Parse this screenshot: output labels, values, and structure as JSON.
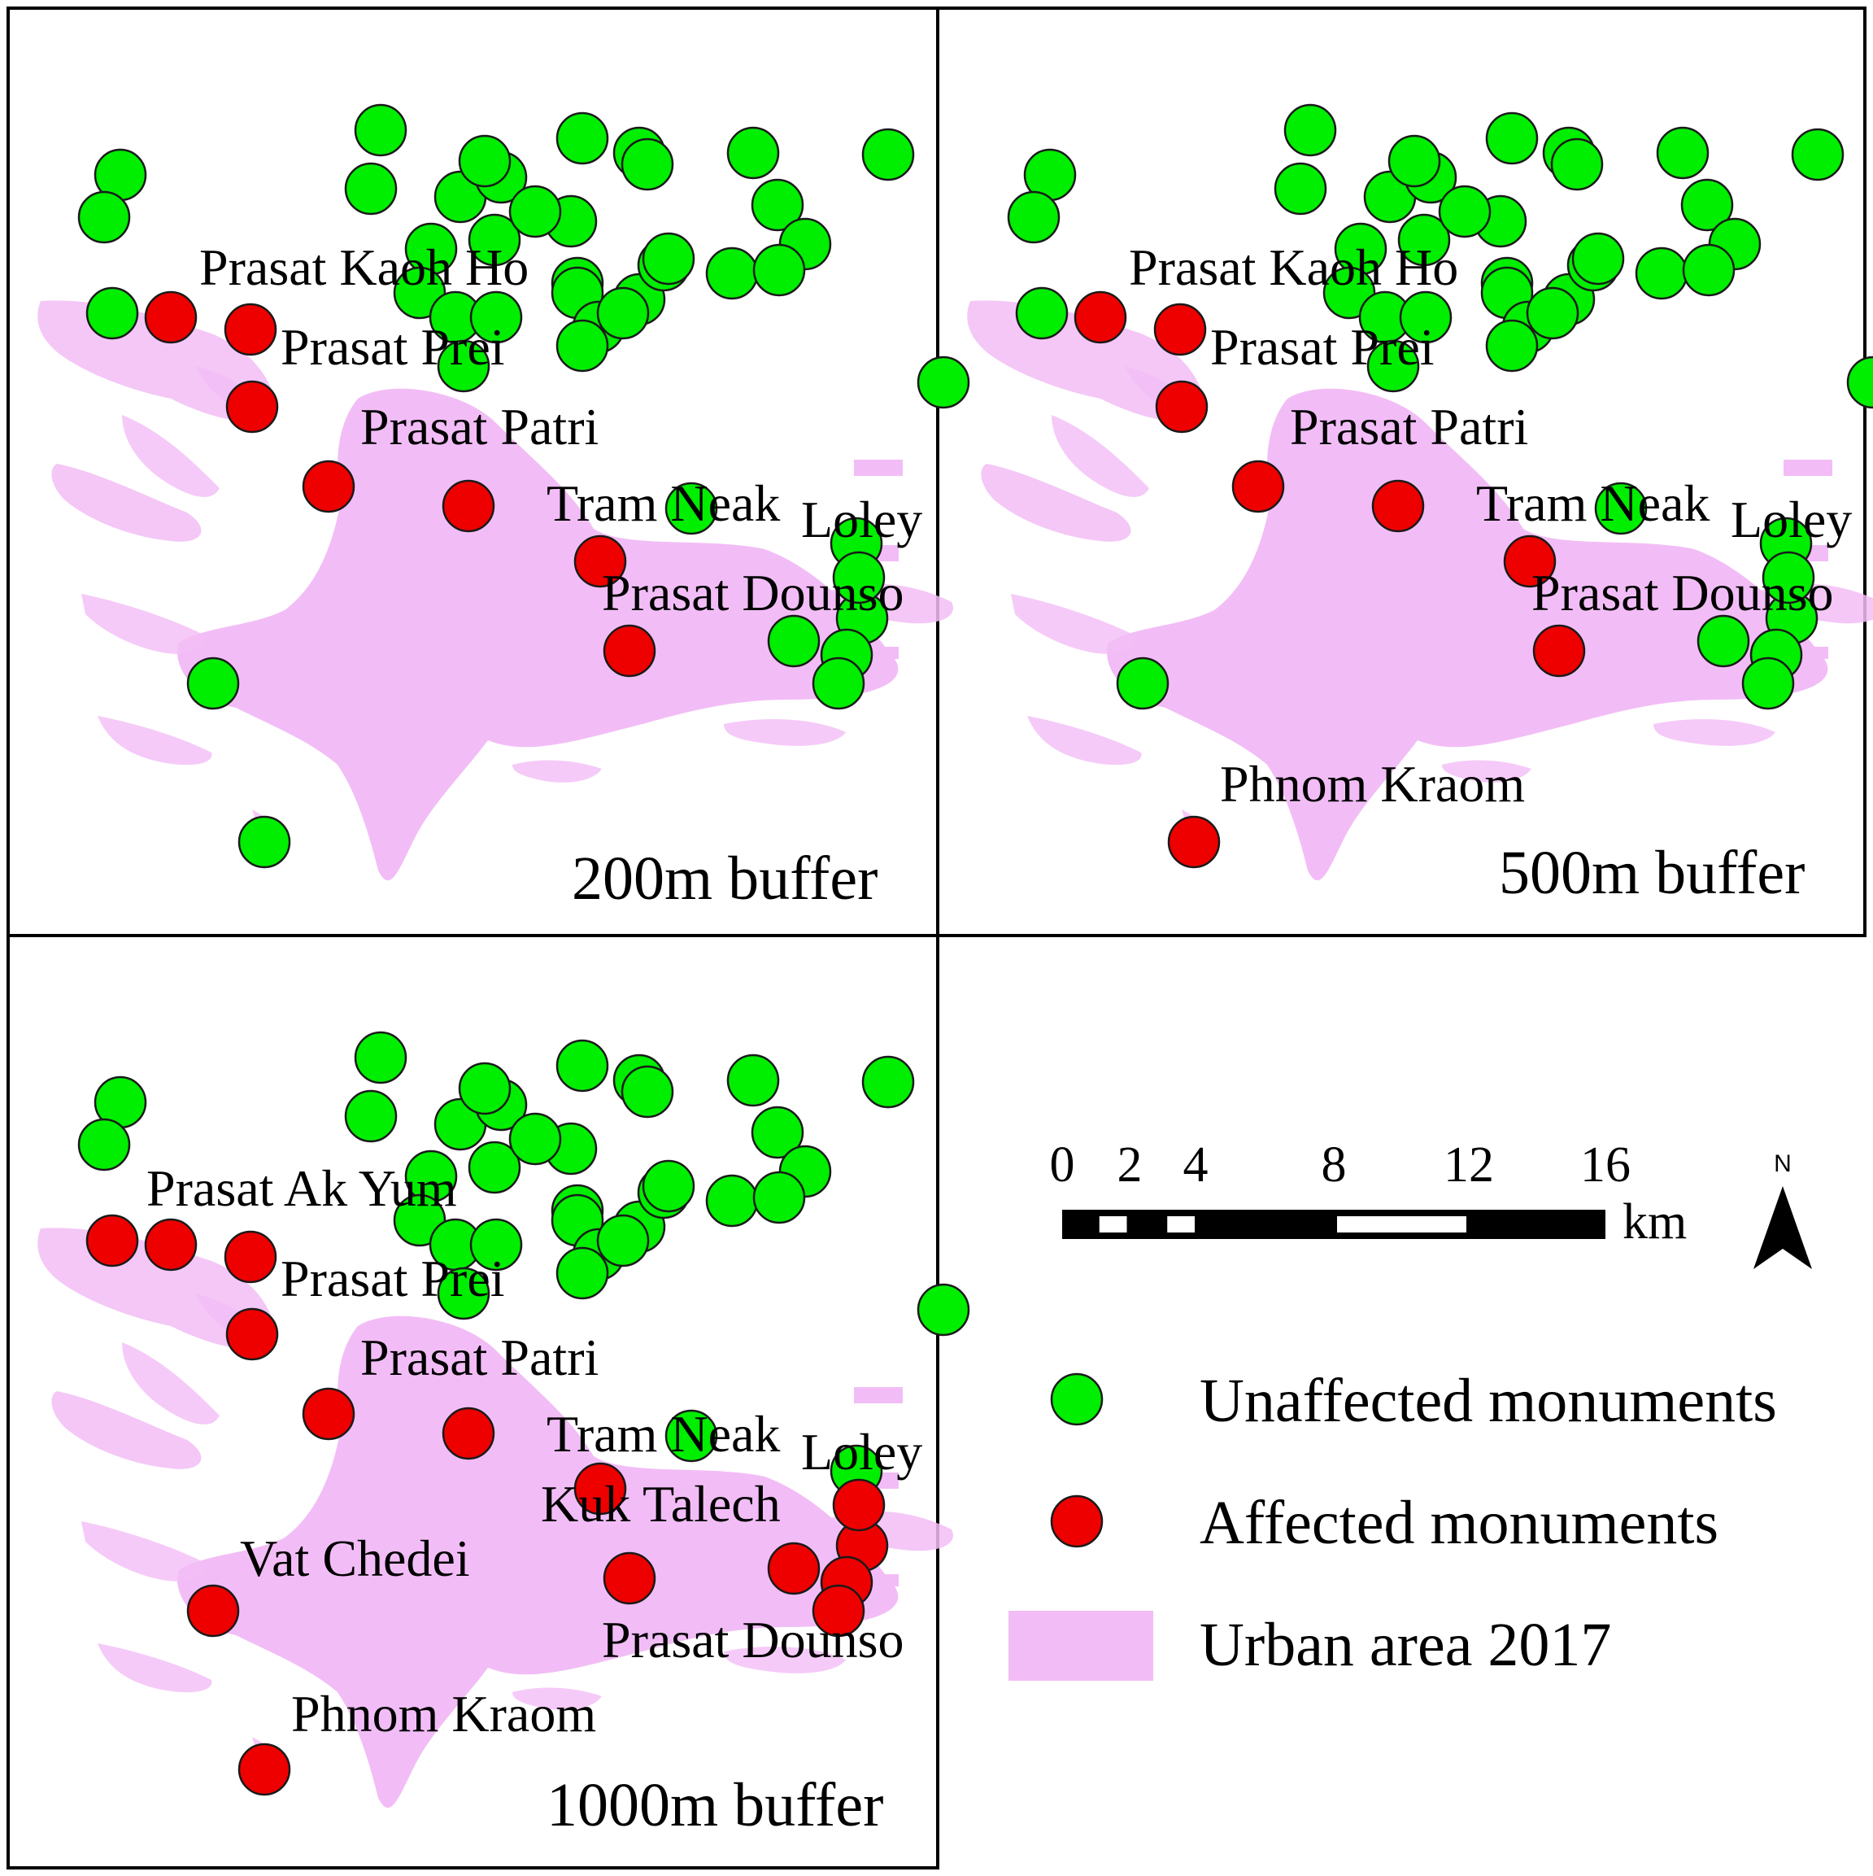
{
  "colors": {
    "unaffected": "#00ee00",
    "affected": "#ee0000",
    "urban": "#f2bdf6",
    "frame": "#000000"
  },
  "panels": [
    {
      "id": "p200",
      "title": "200m buffer",
      "labels": [
        "Prasat Kaoh Ho",
        "Prasat Prei",
        "Prasat Patri",
        "Tram Neak",
        "Loley",
        "Prasat Dounso"
      ],
      "affected_count": 7
    },
    {
      "id": "p500",
      "title": "500m buffer",
      "labels": [
        "Prasat Kaoh Ho",
        "Prasat Prei",
        "Prasat Patri",
        "Tram Neak",
        "Loley",
        "Prasat Dounso",
        "Phnom Kraom"
      ],
      "affected_count": 8
    },
    {
      "id": "p1000",
      "title": "1000m buffer",
      "labels": [
        "Prasat Ak Yum",
        "Prasat Prei",
        "Prasat Patri",
        "Tram Neak",
        "Loley",
        "Kuk Talech",
        "Vat Chedei",
        "Prasat Dounso",
        "Phnom Kraom"
      ],
      "affected_count": 15
    }
  ],
  "scale_bar": {
    "ticks": [
      "0",
      "2",
      "4",
      "8",
      "12",
      "16"
    ],
    "tick_values": [
      0,
      2,
      4,
      8,
      12,
      16
    ],
    "unit": "km"
  },
  "north_arrow": {
    "letter": "N"
  },
  "legend": {
    "unaffected": "Unaffected monuments",
    "affected": "Affected monuments",
    "urban": "Urban area 2017"
  }
}
